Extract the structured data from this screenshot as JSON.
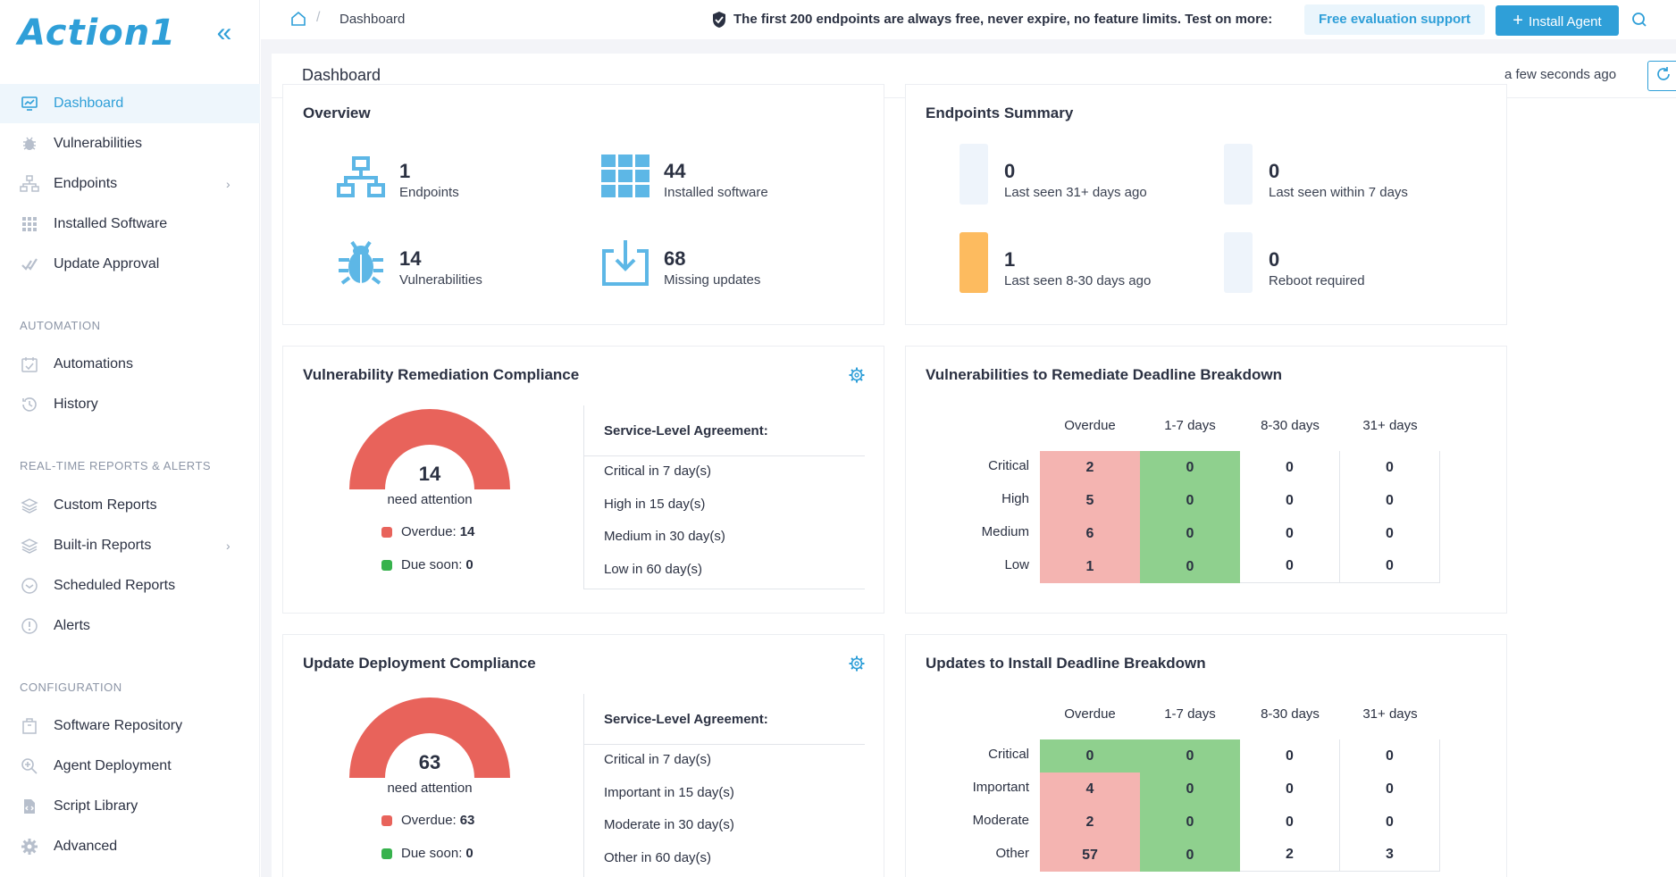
{
  "app": {
    "logo_text": "Action1",
    "collapse_icon": "double-chevron-left-icon"
  },
  "sidebar": {
    "items": [
      {
        "label": "Dashboard",
        "icon": "chart-monitor-icon",
        "active": true
      },
      {
        "label": "Vulnerabilities",
        "icon": "bug-icon"
      },
      {
        "label": "Endpoints",
        "icon": "network-icon",
        "has_submenu": true
      },
      {
        "label": "Installed Software",
        "icon": "grid-icon"
      },
      {
        "label": "Update Approval",
        "icon": "double-check-icon"
      }
    ],
    "sections": [
      {
        "title": "AUTOMATION",
        "items": [
          {
            "label": "Automations",
            "icon": "calendar-check-icon"
          },
          {
            "label": "History",
            "icon": "history-icon"
          }
        ]
      },
      {
        "title": "REAL-TIME REPORTS & ALERTS",
        "items": [
          {
            "label": "Custom Reports",
            "icon": "layers-icon"
          },
          {
            "label": "Built-in Reports",
            "icon": "layers-icon",
            "has_submenu": true
          },
          {
            "label": "Scheduled Reports",
            "icon": "clock-icon"
          },
          {
            "label": "Alerts",
            "icon": "alert-icon"
          }
        ]
      },
      {
        "title": "CONFIGURATION",
        "items": [
          {
            "label": "Software Repository",
            "icon": "package-icon"
          },
          {
            "label": "Agent Deployment",
            "icon": "magnify-plus-icon"
          },
          {
            "label": "Script Library",
            "icon": "script-file-icon"
          },
          {
            "label": "Advanced",
            "icon": "gear-icon"
          }
        ]
      }
    ]
  },
  "topbar": {
    "breadcrumb_home_icon": "home-icon",
    "breadcrumb_separator": "/",
    "breadcrumb_current": "Dashboard",
    "promo_text": "The first 200 endpoints are always free, never expire, no feature limits. Test on more:",
    "eval_button": "Free evaluation support",
    "install_button": "Install Agent",
    "install_icon": "plus-icon"
  },
  "page": {
    "title": "Dashboard",
    "updated": "a few seconds ago",
    "refresh_icon": "refresh-icon"
  },
  "overview": {
    "title": "Overview",
    "stats": [
      {
        "value": "1",
        "label": "Endpoints",
        "icon": "network-icon"
      },
      {
        "value": "44",
        "label": "Installed software",
        "icon": "grid-icon"
      },
      {
        "value": "14",
        "label": "Vulnerabilities",
        "icon": "bug-icon"
      },
      {
        "value": "68",
        "label": "Missing updates",
        "icon": "download-tray-icon"
      }
    ]
  },
  "endpoints_summary": {
    "title": "Endpoints Summary",
    "stats": [
      {
        "value": "0",
        "label": "Last seen 31+ days ago",
        "color": "#eef4fb",
        "fill": 0
      },
      {
        "value": "0",
        "label": "Last seen within 7 days",
        "color": "#eef4fb",
        "fill": 0
      },
      {
        "value": "1",
        "label": "Last seen 8-30 days ago",
        "color": "#fdbb5f",
        "fill": 1
      },
      {
        "value": "0",
        "label": "Reboot required",
        "color": "#eef4fb",
        "fill": 0
      }
    ]
  },
  "vuln_compliance": {
    "title": "Vulnerability Remediation Compliance",
    "gauge_value": "14",
    "gauge_label": "need attention",
    "overdue_label": "Overdue:",
    "overdue_value": "14",
    "due_label": "Due soon:",
    "due_value": "0",
    "overdue_color": "#e8635b",
    "due_color": "#37b24d",
    "sla_header": "Service-Level Agreement:",
    "sla": [
      "Critical in 7 day(s)",
      "High in 15 day(s)",
      "Medium in 30 day(s)",
      "Low in 60 day(s)"
    ]
  },
  "vuln_breakdown": {
    "title": "Vulnerabilities to Remediate Deadline Breakdown",
    "columns": [
      "Overdue",
      "1-7 days",
      "8-30 days",
      "31+ days"
    ],
    "rows": [
      {
        "label": "Critical",
        "values": [
          "2",
          "0",
          "0",
          "0"
        ]
      },
      {
        "label": "High",
        "values": [
          "5",
          "0",
          "0",
          "0"
        ]
      },
      {
        "label": "Medium",
        "values": [
          "6",
          "0",
          "0",
          "0"
        ]
      },
      {
        "label": "Low",
        "values": [
          "1",
          "0",
          "0",
          "0"
        ]
      }
    ],
    "colors": {
      "overdue": "#f4b4b1",
      "soon": "#8fd08e",
      "none": "#ffffff"
    }
  },
  "update_compliance": {
    "title": "Update Deployment Compliance",
    "gauge_value": "63",
    "gauge_label": "need attention",
    "overdue_label": "Overdue:",
    "overdue_value": "63",
    "due_label": "Due soon:",
    "due_value": "0",
    "sla_header": "Service-Level Agreement:",
    "sla": [
      "Critical in 7 day(s)",
      "Important in 15 day(s)",
      "Moderate in 30 day(s)",
      "Other in 60 day(s)"
    ]
  },
  "update_breakdown": {
    "title": "Updates to Install Deadline Breakdown",
    "columns": [
      "Overdue",
      "1-7 days",
      "8-30 days",
      "31+ days"
    ],
    "rows": [
      {
        "label": "Critical",
        "values": [
          "0",
          "0",
          "0",
          "0"
        ],
        "shade": [
          "soon",
          "soon",
          "none",
          "none"
        ]
      },
      {
        "label": "Important",
        "values": [
          "4",
          "0",
          "0",
          "0"
        ],
        "shade": [
          "overdue",
          "soon",
          "none",
          "none"
        ]
      },
      {
        "label": "Moderate",
        "values": [
          "2",
          "0",
          "0",
          "0"
        ],
        "shade": [
          "overdue",
          "soon",
          "none",
          "none"
        ]
      },
      {
        "label": "Other",
        "values": [
          "57",
          "0",
          "2",
          "3"
        ],
        "shade": [
          "overdue",
          "soon",
          "none",
          "none"
        ]
      }
    ]
  }
}
